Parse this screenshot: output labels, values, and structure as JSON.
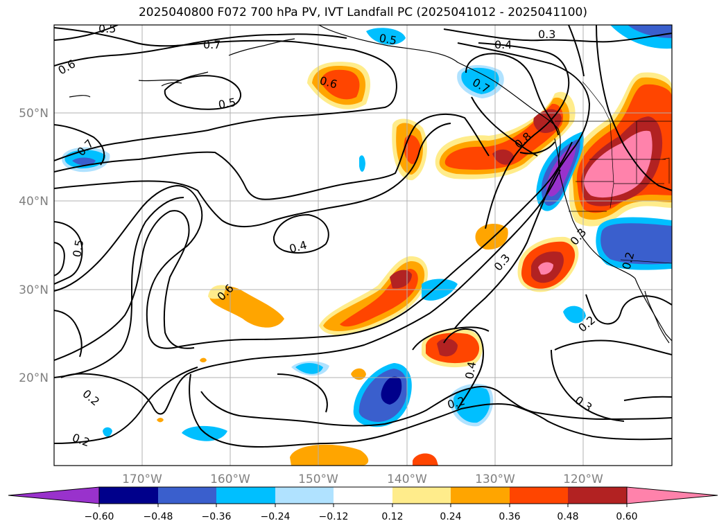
{
  "title": "2025040800 F072 700 hPa PV, IVT Landfall PC (2025041012 - 2025041100)",
  "map": {
    "projection": "PlateCarree",
    "lon_range": [
      -180,
      -110
    ],
    "lat_range": [
      10,
      60
    ],
    "gridlines": true,
    "lat_ticks": [
      "20°N",
      "30°N",
      "40°N",
      "50°N"
    ],
    "lon_ticks": [
      "170°W",
      "160°W",
      "150°W",
      "140°W",
      "130°W",
      "120°W"
    ],
    "tick_color": "#7f7f7f"
  },
  "contour_labels": [
    {
      "text": "0.5"
    },
    {
      "text": "0.7"
    },
    {
      "text": "0.6"
    },
    {
      "text": "0.5"
    },
    {
      "text": "0.6"
    },
    {
      "text": "0.5"
    },
    {
      "text": "0.4"
    },
    {
      "text": "0.3"
    },
    {
      "text": "0.7"
    },
    {
      "text": "0.8"
    },
    {
      "text": "0.7"
    },
    {
      "text": "0.5"
    },
    {
      "text": "0.4"
    },
    {
      "text": "0.6"
    },
    {
      "text": "0.3"
    },
    {
      "text": "0.3"
    },
    {
      "text": "0.2"
    },
    {
      "text": "0.2"
    },
    {
      "text": "0.2"
    },
    {
      "text": "0.4"
    },
    {
      "text": "0.2"
    },
    {
      "text": "0.3"
    },
    {
      "text": "0.2"
    }
  ],
  "colorbar": {
    "levels": [
      "−0.60",
      "−0.48",
      "−0.36",
      "−0.24",
      "−0.12",
      "0.12",
      "0.24",
      "0.36",
      "0.48",
      "0.60"
    ],
    "colors": [
      "#9932cc",
      "#00008b",
      "#3a5fcd",
      "#00bfff",
      "#b0e2ff",
      "#ffffff",
      "#ffec8b",
      "#ffa500",
      "#ff4500",
      "#b22222",
      "#ff82ab"
    ],
    "extend": "both"
  }
}
